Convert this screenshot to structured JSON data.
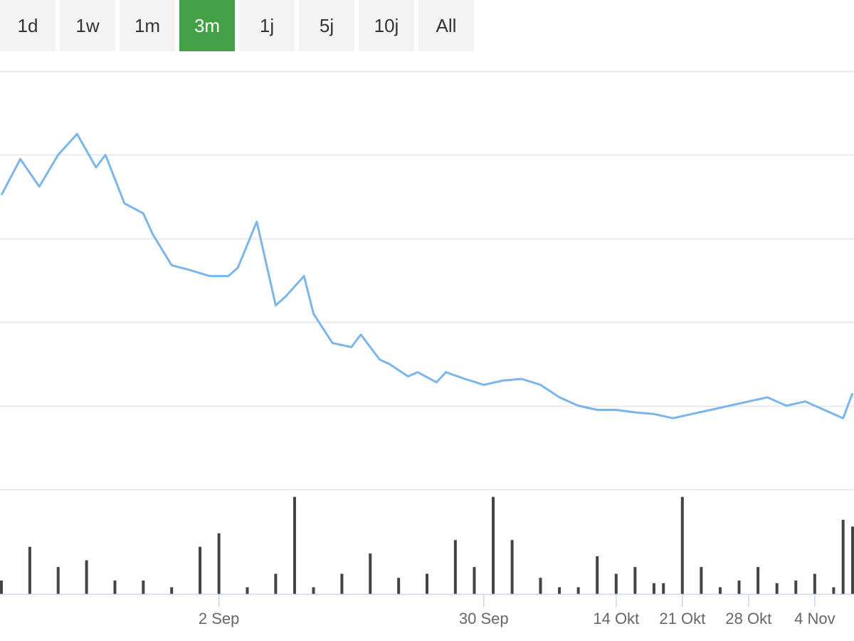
{
  "range_buttons": [
    {
      "label": "1d",
      "active": false
    },
    {
      "label": "1w",
      "active": false
    },
    {
      "label": "1m",
      "active": false
    },
    {
      "label": "3m",
      "active": true
    },
    {
      "label": "1j",
      "active": false
    },
    {
      "label": "5j",
      "active": false
    },
    {
      "label": "10j",
      "active": false
    },
    {
      "label": "All",
      "active": false
    }
  ],
  "colors": {
    "accent": "#43a047",
    "button_bg": "#f3f3f3",
    "line": "#7cb5ec",
    "volume": "#434348",
    "grid": "#e6e6e6",
    "axis_text": "#666666"
  },
  "chart_data": {
    "type": "line",
    "title": "",
    "xlabel": "",
    "ylabel": "",
    "grid": true,
    "legend": "none",
    "x_range": [
      "2019-08-10",
      "2019-11-08"
    ],
    "y_range": [
      0,
      5
    ],
    "x_ticks": [
      {
        "label": "2 Sep",
        "date": "2019-09-02"
      },
      {
        "label": "30 Sep",
        "date": "2019-09-30"
      },
      {
        "label": "14 Okt",
        "date": "2019-10-14"
      },
      {
        "label": "21 Okt",
        "date": "2019-10-21"
      },
      {
        "label": "28 Okt",
        "date": "2019-10-28"
      },
      {
        "label": "4 Nov",
        "date": "2019-11-04"
      }
    ],
    "price_series": {
      "x": [
        "2019-08-10",
        "2019-08-12",
        "2019-08-14",
        "2019-08-16",
        "2019-08-18",
        "2019-08-20",
        "2019-08-21",
        "2019-08-23",
        "2019-08-25",
        "2019-08-26",
        "2019-08-28",
        "2019-08-30",
        "2019-09-01",
        "2019-09-03",
        "2019-09-04",
        "2019-09-06",
        "2019-09-08",
        "2019-09-09",
        "2019-09-11",
        "2019-09-12",
        "2019-09-14",
        "2019-09-16",
        "2019-09-17",
        "2019-09-19",
        "2019-09-20",
        "2019-09-22",
        "2019-09-23",
        "2019-09-25",
        "2019-09-26",
        "2019-09-28",
        "2019-09-30",
        "2019-10-02",
        "2019-10-04",
        "2019-10-06",
        "2019-10-08",
        "2019-10-10",
        "2019-10-12",
        "2019-10-14",
        "2019-10-16",
        "2019-10-18",
        "2019-10-20",
        "2019-10-22",
        "2019-10-24",
        "2019-10-26",
        "2019-10-28",
        "2019-10-30",
        "2019-11-01",
        "2019-11-03",
        "2019-11-05",
        "2019-11-07",
        "2019-11-08"
      ],
      "values": [
        3.52,
        3.95,
        3.62,
        4.0,
        4.25,
        3.85,
        4.0,
        3.42,
        3.3,
        3.05,
        2.68,
        2.62,
        2.55,
        2.55,
        2.65,
        3.2,
        2.2,
        2.3,
        2.55,
        2.1,
        1.75,
        1.7,
        1.85,
        1.55,
        1.5,
        1.35,
        1.4,
        1.28,
        1.4,
        1.32,
        1.25,
        1.3,
        1.32,
        1.25,
        1.1,
        1.0,
        0.95,
        0.95,
        0.92,
        0.9,
        0.85,
        0.9,
        0.95,
        1.0,
        1.05,
        1.1,
        1.0,
        1.05,
        0.95,
        0.85,
        1.15
      ]
    },
    "volume_series": {
      "x": [
        "2019-08-10",
        "2019-08-13",
        "2019-08-16",
        "2019-08-19",
        "2019-08-22",
        "2019-08-25",
        "2019-08-28",
        "2019-08-31",
        "2019-09-02",
        "2019-09-05",
        "2019-09-08",
        "2019-09-10",
        "2019-09-12",
        "2019-09-15",
        "2019-09-18",
        "2019-09-21",
        "2019-09-24",
        "2019-09-27",
        "2019-09-29",
        "2019-10-01",
        "2019-10-03",
        "2019-10-06",
        "2019-10-08",
        "2019-10-10",
        "2019-10-12",
        "2019-10-14",
        "2019-10-16",
        "2019-10-18",
        "2019-10-19",
        "2019-10-21",
        "2019-10-23",
        "2019-10-25",
        "2019-10-27",
        "2019-10-29",
        "2019-10-31",
        "2019-11-02",
        "2019-11-04",
        "2019-11-06",
        "2019-11-07",
        "2019-11-08"
      ],
      "values": [
        0.1,
        0.35,
        0.2,
        0.25,
        0.1,
        0.1,
        0.05,
        0.35,
        0.45,
        0.05,
        0.15,
        0.72,
        0.05,
        0.15,
        0.3,
        0.12,
        0.15,
        0.4,
        0.2,
        0.72,
        0.4,
        0.12,
        0.05,
        0.05,
        0.28,
        0.15,
        0.2,
        0.08,
        0.08,
        0.72,
        0.2,
        0.05,
        0.1,
        0.2,
        0.08,
        0.1,
        0.15,
        0.05,
        0.55,
        0.5
      ]
    }
  }
}
